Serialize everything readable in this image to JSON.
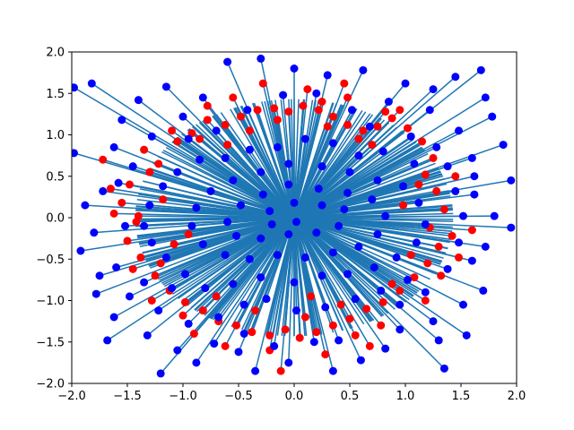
{
  "chart_data": {
    "type": "scatter",
    "title": "",
    "xlabel": "",
    "ylabel": "",
    "xlim": [
      -2.0,
      2.0
    ],
    "ylim": [
      -2.0,
      2.0
    ],
    "grid": false,
    "x_ticks": [
      {
        "value": -2.0,
        "label": "−2.0"
      },
      {
        "value": -1.5,
        "label": "−1.5"
      },
      {
        "value": -1.0,
        "label": "−1.0"
      },
      {
        "value": -0.5,
        "label": "−0.5"
      },
      {
        "value": 0.0,
        "label": "0.0"
      },
      {
        "value": 0.5,
        "label": "0.5"
      },
      {
        "value": 1.0,
        "label": "1.0"
      },
      {
        "value": 1.5,
        "label": "1.5"
      },
      {
        "value": 2.0,
        "label": "2.0"
      }
    ],
    "y_ticks": [
      {
        "value": -2.0,
        "label": "−2.0"
      },
      {
        "value": -1.5,
        "label": "−1.5"
      },
      {
        "value": -1.0,
        "label": "−1.0"
      },
      {
        "value": -0.5,
        "label": "−0.5"
      },
      {
        "value": 0.0,
        "label": "0.0"
      },
      {
        "value": 0.5,
        "label": "0.5"
      },
      {
        "value": 1.0,
        "label": "1.0"
      },
      {
        "value": 1.5,
        "label": "1.5"
      },
      {
        "value": 2.0,
        "label": "2.0"
      }
    ],
    "colors": {
      "red_points": "#ff0000",
      "blue_points": "#0000ff",
      "segments": "#1f77b4"
    },
    "series": [
      {
        "color": "red",
        "points": [
          [
            -1.35,
            0.82
          ],
          [
            -1.22,
            0.65
          ],
          [
            -1.05,
            0.92
          ],
          [
            -0.92,
            1.02
          ],
          [
            -0.78,
            1.18
          ],
          [
            -0.62,
            1.12
          ],
          [
            -0.48,
            1.22
          ],
          [
            -0.33,
            1.3
          ],
          [
            -0.18,
            1.32
          ],
          [
            -0.05,
            1.28
          ],
          [
            0.08,
            1.35
          ],
          [
            0.22,
            1.3
          ],
          [
            0.35,
            1.22
          ],
          [
            0.48,
            1.12
          ],
          [
            0.62,
            1.05
          ],
          [
            0.75,
            1.1
          ],
          [
            0.88,
            1.2
          ],
          [
            1.02,
            1.08
          ],
          [
            1.15,
            0.92
          ],
          [
            1.25,
            0.72
          ],
          [
            -1.48,
            0.4
          ],
          [
            -1.55,
            0.18
          ],
          [
            -1.42,
            -0.05
          ],
          [
            -1.5,
            -0.28
          ],
          [
            -1.38,
            -0.48
          ],
          [
            -1.25,
            -0.7
          ],
          [
            -1.12,
            -0.88
          ],
          [
            -0.98,
            -1.02
          ],
          [
            -0.82,
            -1.12
          ],
          [
            -0.68,
            -1.25
          ],
          [
            -0.52,
            -1.3
          ],
          [
            -0.38,
            -1.38
          ],
          [
            -0.22,
            -1.42
          ],
          [
            -0.08,
            -1.35
          ],
          [
            0.05,
            -1.45
          ],
          [
            0.2,
            -1.38
          ],
          [
            0.35,
            -1.3
          ],
          [
            0.5,
            -1.22
          ],
          [
            0.65,
            -1.1
          ],
          [
            0.8,
            -1.02
          ],
          [
            0.95,
            -0.88
          ],
          [
            1.08,
            -0.72
          ],
          [
            1.2,
            -0.55
          ],
          [
            1.3,
            -0.35
          ],
          [
            1.22,
            -0.12
          ],
          [
            1.35,
            0.1
          ],
          [
            1.28,
            0.32
          ],
          [
            1.18,
            0.52
          ],
          [
            -1.18,
            0.22
          ],
          [
            -1.08,
            -0.32
          ],
          [
            -0.28,
            1.62
          ],
          [
            0.12,
            1.55
          ],
          [
            0.48,
            1.45
          ],
          [
            -0.62,
            -1.55
          ],
          [
            0.28,
            -1.65
          ],
          [
            1.42,
            -0.22
          ],
          [
            -1.62,
            0.05
          ],
          [
            0.95,
            1.3
          ],
          [
            -1.0,
            -1.18
          ],
          [
            0.55,
            -1.42
          ],
          [
            -0.85,
            0.95
          ],
          [
            0.7,
            0.88
          ],
          [
            -0.7,
            -0.95
          ],
          [
            0.88,
            -0.8
          ],
          [
            -1.3,
            0.55
          ],
          [
            1.12,
            0.4
          ],
          [
            -1.2,
            -0.55
          ],
          [
            1.05,
            -0.45
          ],
          [
            -0.4,
            1.05
          ],
          [
            0.3,
            1.1
          ],
          [
            -0.35,
            -1.12
          ],
          [
            0.42,
            -1.05
          ],
          [
            -0.95,
            -0.2
          ],
          [
            0.98,
            0.15
          ],
          [
            -0.15,
            1.18
          ],
          [
            0.1,
            -1.2
          ],
          [
            -1.65,
            0.35
          ],
          [
            1.6,
            -0.15
          ],
          [
            -0.55,
            1.45
          ],
          [
            0.68,
            -1.55
          ],
          [
            1.45,
            0.5
          ],
          [
            -1.45,
            -0.62
          ],
          [
            0.25,
            1.4
          ],
          [
            -0.22,
            -1.6
          ],
          [
            1.32,
            -0.7
          ],
          [
            -1.1,
            1.05
          ],
          [
            0.82,
            1.28
          ],
          [
            -0.9,
            -1.4
          ],
          [
            -1.72,
            0.7
          ],
          [
            0.45,
            1.62
          ],
          [
            -0.12,
            -1.85
          ],
          [
            0.78,
            -1.3
          ],
          [
            -1.28,
            -1.0
          ],
          [
            1.18,
            -1.0
          ],
          [
            0.58,
            0.95
          ],
          [
            -0.6,
            0.88
          ],
          [
            0.15,
            -0.95
          ],
          [
            -1.4,
            0.02
          ],
          [
            1.48,
            -0.48
          ],
          [
            -0.78,
            1.35
          ]
        ]
      },
      {
        "color": "blue",
        "points": [
          [
            -1.98,
            0.78
          ],
          [
            -1.82,
            1.62
          ],
          [
            -1.98,
            1.57
          ],
          [
            -1.58,
            0.42
          ],
          [
            -1.28,
            0.98
          ],
          [
            -0.82,
            1.45
          ],
          [
            -0.42,
            1.3
          ],
          [
            -0.1,
            1.48
          ],
          [
            0.2,
            1.5
          ],
          [
            0.52,
            1.3
          ],
          [
            0.85,
            1.4
          ],
          [
            1.22,
            1.3
          ],
          [
            1.68,
            1.78
          ],
          [
            1.78,
            1.22
          ],
          [
            1.95,
            0.45
          ],
          [
            1.8,
            0.02
          ],
          [
            1.95,
            -0.12
          ],
          [
            1.6,
            -0.52
          ],
          [
            1.7,
            -0.88
          ],
          [
            1.55,
            -1.42
          ],
          [
            1.35,
            -1.82
          ],
          [
            0.82,
            -1.58
          ],
          [
            0.35,
            -1.85
          ],
          [
            -0.05,
            -1.75
          ],
          [
            -0.35,
            -1.85
          ],
          [
            -0.72,
            -1.52
          ],
          [
            -1.05,
            -1.6
          ],
          [
            -1.32,
            -1.42
          ],
          [
            -1.68,
            -1.48
          ],
          [
            -1.78,
            -0.92
          ],
          [
            -1.92,
            -0.4
          ],
          [
            -1.8,
            -0.18
          ],
          [
            -1.88,
            0.15
          ],
          [
            -1.72,
            0.32
          ],
          [
            -1.6,
            -0.6
          ],
          [
            -1.48,
            -0.95
          ],
          [
            -1.22,
            -1.12
          ],
          [
            -0.95,
            -1.28
          ],
          [
            -0.68,
            -1.2
          ],
          [
            -0.45,
            -1.05
          ],
          [
            -0.25,
            -0.98
          ],
          [
            0.02,
            -1.12
          ],
          [
            0.28,
            -1.08
          ],
          [
            0.55,
            -0.98
          ],
          [
            0.78,
            -0.88
          ],
          [
            1.02,
            -0.75
          ],
          [
            1.18,
            -0.9
          ],
          [
            1.38,
            -0.62
          ],
          [
            1.48,
            -0.3
          ],
          [
            1.52,
            0.02
          ],
          [
            1.45,
            0.32
          ],
          [
            1.38,
            0.62
          ],
          [
            1.28,
            0.85
          ],
          [
            1.05,
            0.98
          ],
          [
            0.8,
            0.8
          ],
          [
            0.58,
            0.75
          ],
          [
            0.35,
            0.9
          ],
          [
            0.1,
            0.95
          ],
          [
            -0.15,
            0.85
          ],
          [
            -0.4,
            0.82
          ],
          [
            -0.62,
            0.72
          ],
          [
            -0.85,
            0.7
          ],
          [
            -1.05,
            0.55
          ],
          [
            -1.18,
            0.38
          ],
          [
            -1.3,
            0.15
          ],
          [
            -1.35,
            -0.1
          ],
          [
            -1.28,
            -0.3
          ],
          [
            -1.15,
            -0.48
          ],
          [
            -0.98,
            -0.68
          ],
          [
            -0.8,
            -0.85
          ],
          [
            -0.55,
            -0.8
          ],
          [
            -0.3,
            -0.72
          ],
          [
            0.0,
            -0.78
          ],
          [
            0.25,
            -0.7
          ],
          [
            0.48,
            -0.68
          ],
          [
            0.72,
            -0.6
          ],
          [
            0.92,
            -0.48
          ],
          [
            1.1,
            -0.3
          ],
          [
            1.18,
            -0.08
          ],
          [
            1.12,
            0.18
          ],
          [
            0.98,
            0.38
          ],
          [
            0.75,
            0.45
          ],
          [
            0.5,
            0.55
          ],
          [
            0.25,
            0.62
          ],
          [
            -0.05,
            0.65
          ],
          [
            -0.3,
            0.55
          ],
          [
            -0.55,
            0.45
          ],
          [
            -0.75,
            0.32
          ],
          [
            -0.88,
            0.12
          ],
          [
            -0.92,
            -0.1
          ],
          [
            -0.82,
            -0.32
          ],
          [
            -0.62,
            -0.45
          ],
          [
            -0.4,
            -0.5
          ],
          [
            -0.15,
            -0.45
          ],
          [
            0.1,
            -0.48
          ],
          [
            0.35,
            -0.42
          ],
          [
            0.58,
            -0.35
          ],
          [
            0.75,
            -0.2
          ],
          [
            0.82,
            0.02
          ],
          [
            0.7,
            0.22
          ],
          [
            0.48,
            0.3
          ],
          [
            0.22,
            0.35
          ],
          [
            -0.05,
            0.4
          ],
          [
            -0.28,
            0.28
          ],
          [
            -0.48,
            0.15
          ],
          [
            -0.6,
            -0.05
          ],
          [
            -0.52,
            -0.22
          ],
          [
            -0.3,
            -0.25
          ],
          [
            -0.05,
            -0.2
          ],
          [
            0.2,
            -0.18
          ],
          [
            0.4,
            -0.1
          ],
          [
            0.45,
            0.1
          ],
          [
            0.25,
            0.15
          ],
          [
            0.0,
            0.18
          ],
          [
            -0.22,
            0.08
          ],
          [
            -0.2,
            -0.08
          ],
          [
            0.02,
            -0.05
          ],
          [
            -1.0,
            1.22
          ],
          [
            -1.15,
            1.58
          ],
          [
            -0.6,
            1.88
          ],
          [
            -0.3,
            1.92
          ],
          [
            0.0,
            1.8
          ],
          [
            0.3,
            1.72
          ],
          [
            0.62,
            1.78
          ],
          [
            1.0,
            1.62
          ],
          [
            1.25,
            1.55
          ],
          [
            1.45,
            1.7
          ],
          [
            1.72,
            1.45
          ],
          [
            1.88,
            0.88
          ],
          [
            1.62,
            0.28
          ],
          [
            1.72,
            -0.35
          ],
          [
            1.25,
            -1.25
          ],
          [
            0.95,
            -1.35
          ],
          [
            0.6,
            -1.72
          ],
          [
            0.18,
            -1.5
          ],
          [
            -0.18,
            -1.55
          ],
          [
            -0.5,
            -1.62
          ],
          [
            -0.88,
            -1.75
          ],
          [
            -1.2,
            -1.88
          ],
          [
            -1.62,
            -1.2
          ],
          [
            -1.55,
            1.18
          ],
          [
            -1.4,
            1.42
          ],
          [
            -1.62,
            0.85
          ],
          [
            -1.75,
            -0.7
          ],
          [
            -1.45,
            0.62
          ],
          [
            -1.35,
            -0.78
          ],
          [
            1.6,
            0.72
          ],
          [
            1.48,
            1.05
          ],
          [
            1.52,
            -1.05
          ],
          [
            1.3,
            -1.48
          ],
          [
            -0.95,
            0.95
          ],
          [
            0.95,
            -1.05
          ],
          [
            -1.1,
            -0.85
          ],
          [
            1.08,
            0.65
          ],
          [
            -0.7,
            1.05
          ],
          [
            0.68,
            1.1
          ],
          [
            -0.45,
            -1.4
          ],
          [
            0.4,
            -1.48
          ],
          [
            -1.52,
            -0.1
          ],
          [
            1.62,
            0.5
          ]
        ]
      }
    ]
  }
}
